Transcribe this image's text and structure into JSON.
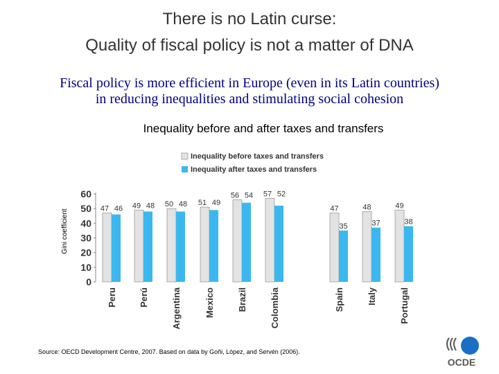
{
  "title_line1": "There is no Latin curse:",
  "title_line2": "Quality of fiscal policy is not a matter of DNA",
  "subtitle_line1": "Fiscal policy is more efficient in Europe (even in its Latin countries)",
  "subtitle_line2": "in reducing inequalities and stimulating social cohesion",
  "source": "Source: OECD Development Centre, 2007. Based on data by  Goñi, López, and Servén (2006).",
  "logo_text": "OCDE",
  "colors": {
    "before": "#e3e3e3",
    "after": "#3bb7f0",
    "title": "#333333",
    "subtitle": "#000080",
    "logo": "#1a6fc4"
  },
  "chart_data": {
    "type": "bar",
    "title": "Inequality before and after taxes and transfers",
    "ylabel": "Gini coefficient",
    "xlabel": "",
    "ylim": [
      0,
      60
    ],
    "yticks": [
      0,
      10,
      20,
      30,
      40,
      50,
      60
    ],
    "categories": [
      "Peru",
      "Perú",
      "Argentina",
      "Mexico",
      "Brazil",
      "Colombia",
      "Spain",
      "Italy",
      "Portugal"
    ],
    "series": [
      {
        "name": "Inequality before taxes and transfers",
        "values": [
          47,
          49,
          50,
          51,
          56,
          57,
          47,
          48,
          49
        ]
      },
      {
        "name": "Inequality after taxes and transfers",
        "values": [
          46,
          48,
          48,
          49,
          54,
          52,
          35,
          37,
          38
        ]
      }
    ],
    "legend_position": "top",
    "grid": false
  }
}
